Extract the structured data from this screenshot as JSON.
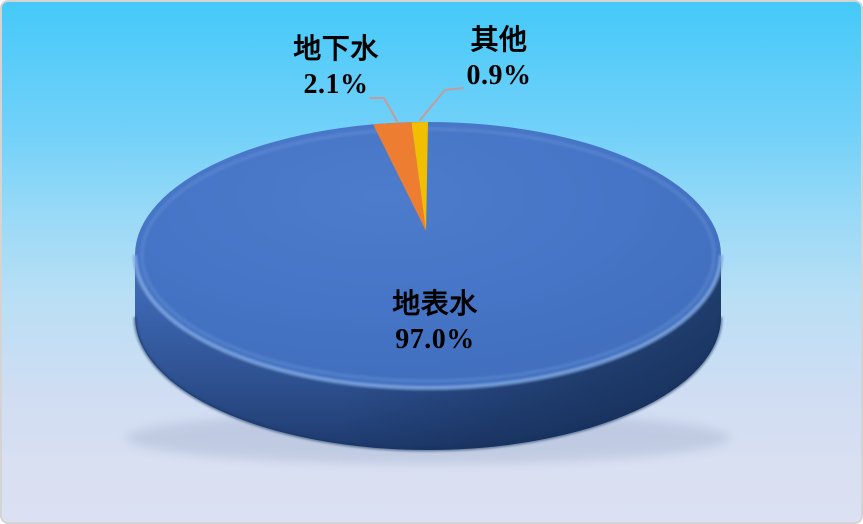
{
  "chart_data": {
    "type": "pie",
    "style": "3d",
    "title": "",
    "legend_position": "none",
    "start_angle_deg": 0,
    "direction": "clockwise",
    "labels_shown": "category name and percent",
    "slices": [
      {
        "name": "地表水",
        "value": 97.0,
        "label": "97.0%",
        "color": "#4572C6"
      },
      {
        "name": "地下水",
        "value": 2.1,
        "label": "2.1%",
        "color": "#ED7D31"
      },
      {
        "name": "其他",
        "value": 0.9,
        "label": "0.9%",
        "color": "#F2BE00"
      }
    ]
  },
  "colors": {
    "background_top": "#45C9F9",
    "background_bottom": "#DBE1F2",
    "pie_top_blue": "#4572C6",
    "pie_side_dark": "#24427A",
    "leader_line": "#C49C9C",
    "label_text": "#000000",
    "frame_border": "#D4D4D4"
  }
}
